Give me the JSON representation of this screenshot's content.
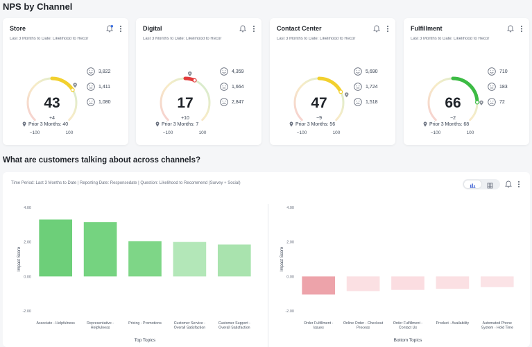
{
  "headings": {
    "nps_title": "NPS by Channel",
    "topics_title": "What are customers talking about across channels?"
  },
  "gauge_scale": {
    "min_label": "−100",
    "max_label": "100",
    "min": -100,
    "max": 100
  },
  "cards": [
    {
      "title": "Store",
      "subtitle": "Last 3 Months to Date: Likelihood to Recor",
      "score": "43",
      "score_value": 43,
      "delta": "+4",
      "promoters": "3,822",
      "passives": "1,411",
      "detractors": "1,080",
      "prior": "Prior 3 Months: 40",
      "prior_value": 40,
      "color": "#f2d02e",
      "has_notification": true
    },
    {
      "title": "Digital",
      "subtitle": "Last 3 Months to Date: Likelihood to Recor",
      "score": "17",
      "score_value": 17,
      "delta": "+10",
      "promoters": "4,359",
      "passives": "1,664",
      "detractors": "2,847",
      "prior": "Prior 3 Months: 7",
      "prior_value": 7,
      "color": "#e23b3b",
      "has_notification": false
    },
    {
      "title": "Contact Center",
      "subtitle": "Last 3 Months to Date: Likelihood to Recor",
      "score": "47",
      "score_value": 47,
      "delta": "−9",
      "promoters": "5,690",
      "passives": "1,724",
      "detractors": "1,518",
      "prior": "Prior 3 Months: 56",
      "prior_value": 56,
      "color": "#f2d02e",
      "has_notification": false
    },
    {
      "title": "Fulfillment",
      "subtitle": "Last 3 Months to Date: Likelihood to Recor",
      "score": "66",
      "score_value": 66,
      "delta": "−2",
      "promoters": "710",
      "passives": "183",
      "detractors": "72",
      "prior": "Prior 3 Months: 68",
      "prior_value": 68,
      "color": "#3cbb44",
      "has_notification": false
    }
  ],
  "panel": {
    "subtitle": "Time Period: Last 3 Months to Date | Reporting Date: Responsedate | Question: Likelihood to Recommend (Survey + Social)"
  },
  "chart_data": [
    {
      "type": "bar",
      "title": "",
      "xlabel": "Top Topics",
      "ylabel": "Impact Score",
      "ylim": [
        -2,
        4
      ],
      "yticks": [
        "4.00",
        "2.00",
        "0.00",
        "-2.00"
      ],
      "grid": false,
      "categories": [
        [
          "Associate - Helpfulness"
        ],
        [
          "Representative -",
          "Helpfulness"
        ],
        [
          "Pricing - Promotions"
        ],
        [
          "Customer Service -",
          "Overall Satisfaction"
        ],
        [
          "Customer Support -",
          "Overall Satisfaction"
        ]
      ],
      "values": [
        3.3,
        3.15,
        2.05,
        2.0,
        1.85
      ],
      "colors": [
        "#6dcf79",
        "#75d380",
        "#7ed687",
        "#b3e7b8",
        "#a9e3ae"
      ]
    },
    {
      "type": "bar",
      "title": "",
      "xlabel": "Bottom Topics",
      "ylabel": "Impact Score",
      "ylim": [
        -2,
        4
      ],
      "yticks": [
        "4.00",
        "2.00",
        "0.00",
        "-2.00"
      ],
      "grid": false,
      "categories": [
        [
          "Order Fulfillment -",
          "Issues"
        ],
        [
          "Online Order - Checkout",
          "Process"
        ],
        [
          "Order Fulfillment -",
          "Contact Us"
        ],
        [
          "Product - Availability"
        ],
        [
          "Automated Phone",
          "System - Hold Time"
        ]
      ],
      "values": [
        -1.05,
        -0.85,
        -0.78,
        -0.72,
        -0.62
      ],
      "colors": [
        "#eda3aa",
        "#fbe0e3",
        "#fbdde1",
        "#fbe0e3",
        "#fbe3e6"
      ]
    }
  ]
}
